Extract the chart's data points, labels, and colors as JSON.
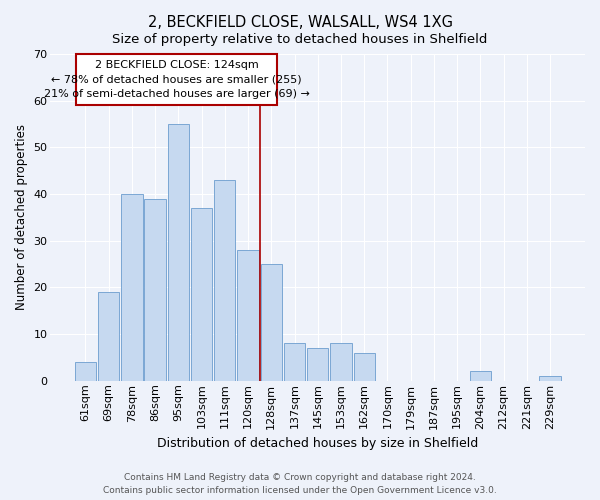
{
  "title": "2, BECKFIELD CLOSE, WALSALL, WS4 1XG",
  "subtitle": "Size of property relative to detached houses in Shelfield",
  "xlabel": "Distribution of detached houses by size in Shelfield",
  "ylabel": "Number of detached properties",
  "bar_labels": [
    "61sqm",
    "69sqm",
    "78sqm",
    "86sqm",
    "95sqm",
    "103sqm",
    "111sqm",
    "120sqm",
    "128sqm",
    "137sqm",
    "145sqm",
    "153sqm",
    "162sqm",
    "170sqm",
    "179sqm",
    "187sqm",
    "195sqm",
    "204sqm",
    "212sqm",
    "221sqm",
    "229sqm"
  ],
  "bar_values": [
    4,
    19,
    40,
    39,
    55,
    37,
    43,
    28,
    25,
    8,
    7,
    8,
    6,
    0,
    0,
    0,
    0,
    2,
    0,
    0,
    1
  ],
  "bar_color": "#c6d9f0",
  "bar_edge_color": "#7ba7d4",
  "vline_x": 7.5,
  "vline_color": "#aa0000",
  "annotation_text_line1": "2 BECKFIELD CLOSE: 124sqm",
  "annotation_text_line2": "← 78% of detached houses are smaller (255)",
  "annotation_text_line3": "21% of semi-detached houses are larger (69) →",
  "annotation_box_edge_color": "#aa0000",
  "ylim": [
    0,
    70
  ],
  "yticks": [
    0,
    10,
    20,
    30,
    40,
    50,
    60,
    70
  ],
  "footer_line1": "Contains HM Land Registry data © Crown copyright and database right 2024.",
  "footer_line2": "Contains public sector information licensed under the Open Government Licence v3.0.",
  "bg_color": "#eef2fa",
  "plot_bg_color": "#eef2fa",
  "grid_color": "#ffffff",
  "title_fontsize": 10.5,
  "subtitle_fontsize": 9.5,
  "xlabel_fontsize": 9,
  "ylabel_fontsize": 8.5,
  "tick_fontsize": 8,
  "annotation_fontsize": 8,
  "footer_fontsize": 6.5
}
